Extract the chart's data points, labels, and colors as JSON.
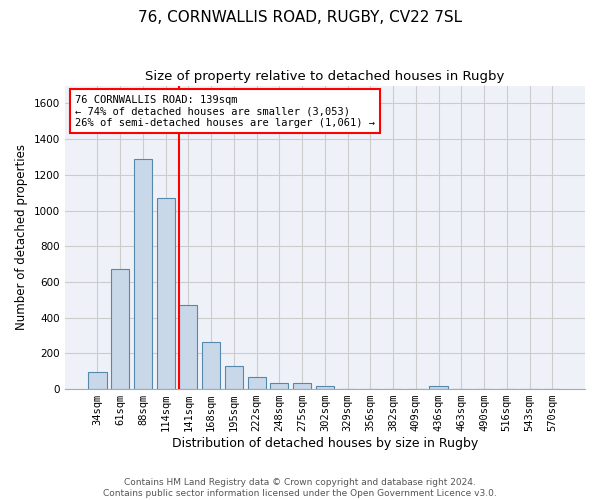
{
  "title1": "76, CORNWALLIS ROAD, RUGBY, CV22 7SL",
  "title2": "Size of property relative to detached houses in Rugby",
  "xlabel": "Distribution of detached houses by size in Rugby",
  "ylabel": "Number of detached properties",
  "categories": [
    "34sqm",
    "61sqm",
    "88sqm",
    "114sqm",
    "141sqm",
    "168sqm",
    "195sqm",
    "222sqm",
    "248sqm",
    "275sqm",
    "302sqm",
    "329sqm",
    "356sqm",
    "382sqm",
    "409sqm",
    "436sqm",
    "463sqm",
    "490sqm",
    "516sqm",
    "543sqm",
    "570sqm"
  ],
  "values": [
    97,
    670,
    1290,
    1070,
    470,
    265,
    128,
    65,
    35,
    35,
    15,
    0,
    0,
    0,
    0,
    15,
    0,
    0,
    0,
    0,
    0
  ],
  "bar_color": "#c8d8e8",
  "bar_edge_color": "#5588aa",
  "annotation_line1": "76 CORNWALLIS ROAD: 139sqm",
  "annotation_line2": "← 74% of detached houses are smaller (3,053)",
  "annotation_line3": "26% of semi-detached houses are larger (1,061) →",
  "annotation_box_color": "white",
  "annotation_box_edge_color": "red",
  "vline_color": "red",
  "vline_x_index": 3.6,
  "ylim": [
    0,
    1700
  ],
  "yticks": [
    0,
    200,
    400,
    600,
    800,
    1000,
    1200,
    1400,
    1600
  ],
  "grid_color": "#cccccc",
  "background_color": "#eef2f8",
  "footer_text": "Contains HM Land Registry data © Crown copyright and database right 2024.\nContains public sector information licensed under the Open Government Licence v3.0.",
  "title1_fontsize": 11,
  "title2_fontsize": 9.5,
  "xlabel_fontsize": 9,
  "ylabel_fontsize": 8.5,
  "tick_fontsize": 7.5,
  "footer_fontsize": 6.5,
  "annot_fontsize": 7.5
}
